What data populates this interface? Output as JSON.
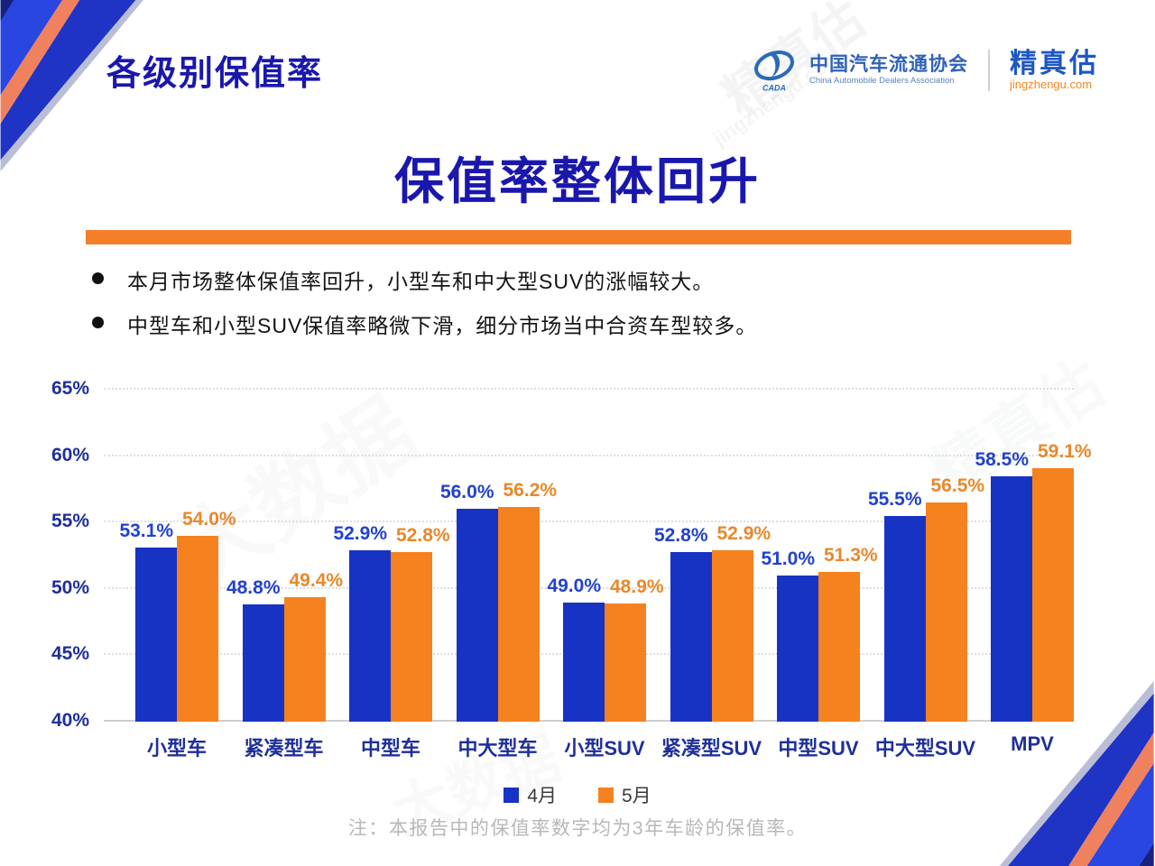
{
  "header": {
    "page_title": "各级别保值率",
    "logo": {
      "cada_acronym": "CADA",
      "org_name_cn": "中国汽车流通协会",
      "org_name_en": "China Automobile Dealers Association",
      "brand_name": "精真估",
      "brand_domain": "jingzhengu.com"
    }
  },
  "main": {
    "title": "保值率整体回升",
    "bullets": [
      "本月市场整体保值率回升，小型车和中大型SUV的涨幅较大。",
      "中型车和小型SUV保值率略微下滑，细分市场当中合资车型较多。"
    ],
    "note": "注：本报告中的保值率数字均为3年车龄的保值率。"
  },
  "chart_data": {
    "type": "bar",
    "title": "保值率整体回升",
    "categories": [
      "小型车",
      "紧凑型车",
      "中型车",
      "中大型车",
      "小型SUV",
      "紧凑型SUV",
      "中型SUV",
      "中大型SUV",
      "MPV"
    ],
    "series": [
      {
        "name": "4月",
        "color": "#1733C4",
        "label_color": "#2142CE",
        "values": [
          53.1,
          48.8,
          52.9,
          56.0,
          49.0,
          52.8,
          51.0,
          55.5,
          58.5
        ]
      },
      {
        "name": "5月",
        "color": "#F5821F",
        "label_color": "#E8882B",
        "values": [
          54.0,
          49.4,
          52.8,
          56.2,
          48.9,
          52.9,
          51.3,
          56.5,
          59.1
        ]
      }
    ],
    "xlabel": "",
    "ylabel": "",
    "ylim": [
      40,
      65
    ],
    "ytick_step": 5,
    "ytick_suffix": "%",
    "value_label_suffix": "%",
    "grid": true,
    "legend_position": "bottom"
  },
  "watermarks": {
    "brand": "精真估",
    "domain": "jingzhengu.com",
    "tagline": "大数据"
  },
  "colors": {
    "title_blue": "#1A17AD",
    "divider_orange": "#F57E2A",
    "axis_blue": "#1E2F9B",
    "note_gray": "#B8B8B8"
  }
}
